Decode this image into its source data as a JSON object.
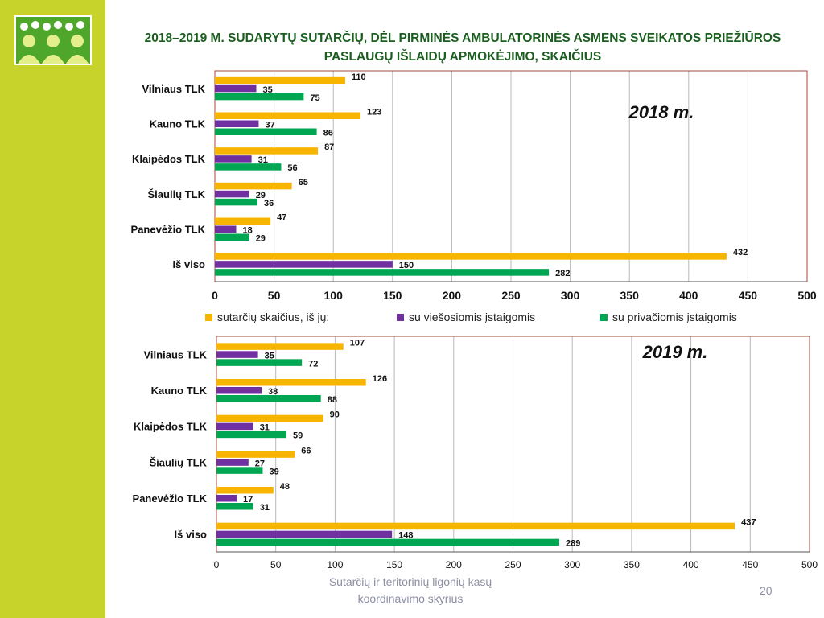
{
  "title": {
    "part1": "2018–2019 M. SUDARYTŲ ",
    "part2": "SUTARČIŲ,",
    "part3": " DĖL PIRMINĖS AMBULATORINĖS ASMENS SVEIKATOS PRIEŽIŪROS",
    "line2": "PASLAUGŲ IŠLAIDŲ APMOKĖJIMO, SKAIČIUS"
  },
  "legend": [
    {
      "label": "sutarčių skaičius, iš jų:",
      "color": "#f7b500"
    },
    {
      "label": "su viešosiomis įstaigomis",
      "color": "#7030a0"
    },
    {
      "label": "su privačiomis įstaigomis",
      "color": "#00a651"
    }
  ],
  "footer": {
    "line1": "Sutarčių ir teritorinių ligonių kasų",
    "line2": "koordinavimo skyrius"
  },
  "page_number": "20",
  "chart_data": [
    {
      "type": "bar",
      "orientation": "horizontal",
      "year_label": "2018 m.",
      "categories": [
        "Vilniaus TLK",
        "Kauno TLK",
        "Klaipėdos TLK",
        "Šiaulių TLK",
        "Panevėžio TLK",
        "Iš viso"
      ],
      "series": [
        {
          "name": "sutarčių skaičius, iš jų:",
          "values": [
            110,
            123,
            87,
            65,
            47,
            432
          ]
        },
        {
          "name": "su viešosiomis įstaigomis",
          "values": [
            35,
            37,
            31,
            29,
            18,
            150
          ]
        },
        {
          "name": "su privačiomis įstaigomis",
          "values": [
            75,
            86,
            56,
            36,
            29,
            282
          ]
        }
      ],
      "xlim": [
        0,
        500
      ],
      "xticks": [
        0,
        50,
        100,
        150,
        200,
        250,
        300,
        350,
        400,
        450,
        500
      ],
      "grid": true,
      "legend": "bottom"
    },
    {
      "type": "bar",
      "orientation": "horizontal",
      "year_label": "2019 m.",
      "categories": [
        "Vilniaus TLK",
        "Kauno TLK",
        "Klaipėdos TLK",
        "Šiaulių TLK",
        "Panevėžio TLK",
        "Iš viso"
      ],
      "series": [
        {
          "name": "sutarčių skaičius, iš jų:",
          "values": [
            107,
            126,
            90,
            66,
            48,
            437
          ]
        },
        {
          "name": "su viešosiomis įstaigomis",
          "values": [
            35,
            38,
            31,
            27,
            17,
            148
          ]
        },
        {
          "name": "su privačiomis įstaigomis",
          "values": [
            72,
            88,
            59,
            39,
            31,
            289
          ]
        }
      ],
      "xlim": [
        0,
        500
      ],
      "xticks": [
        0,
        50,
        100,
        150,
        200,
        250,
        300,
        350,
        400,
        450,
        500
      ],
      "grid": true,
      "legend": "none"
    }
  ]
}
